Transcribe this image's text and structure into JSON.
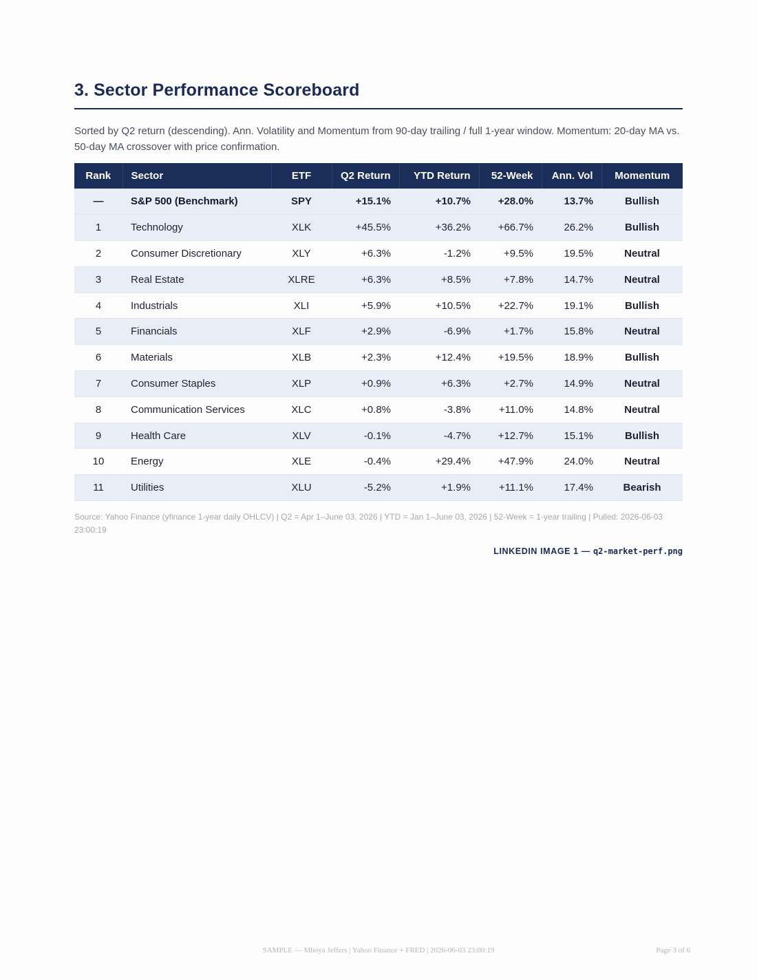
{
  "heading": {
    "title": "3. Sector Performance Scoreboard",
    "description": "Sorted by Q2 return (descending). Ann. Volatility and Momentum from 90-day trailing / full 1-year window. Momentum: 20-day MA vs. 50-day MA crossover with price confirmation."
  },
  "table": {
    "headers": {
      "rank": "Rank",
      "sector": "Sector",
      "etf": "ETF",
      "q2": "Q2 Return",
      "ytd": "YTD Return",
      "week52": "52-Week",
      "vol": "Ann. Vol",
      "momentum": "Momentum"
    },
    "rows": [
      {
        "rank": "—",
        "sector": "S&P 500 (Benchmark)",
        "etf": "SPY",
        "q2": "+15.1%",
        "ytd": "+10.7%",
        "week52": "+28.0%",
        "vol": "13.7%",
        "momentum": "Bullish"
      },
      {
        "rank": "1",
        "sector": "Technology",
        "etf": "XLK",
        "q2": "+45.5%",
        "ytd": "+36.2%",
        "week52": "+66.7%",
        "vol": "26.2%",
        "momentum": "Bullish"
      },
      {
        "rank": "2",
        "sector": "Consumer Discretionary",
        "etf": "XLY",
        "q2": "+6.3%",
        "ytd": "-1.2%",
        "week52": "+9.5%",
        "vol": "19.5%",
        "momentum": "Neutral"
      },
      {
        "rank": "3",
        "sector": "Real Estate",
        "etf": "XLRE",
        "q2": "+6.3%",
        "ytd": "+8.5%",
        "week52": "+7.8%",
        "vol": "14.7%",
        "momentum": "Neutral"
      },
      {
        "rank": "4",
        "sector": "Industrials",
        "etf": "XLI",
        "q2": "+5.9%",
        "ytd": "+10.5%",
        "week52": "+22.7%",
        "vol": "19.1%",
        "momentum": "Bullish"
      },
      {
        "rank": "5",
        "sector": "Financials",
        "etf": "XLF",
        "q2": "+2.9%",
        "ytd": "-6.9%",
        "week52": "+1.7%",
        "vol": "15.8%",
        "momentum": "Neutral"
      },
      {
        "rank": "6",
        "sector": "Materials",
        "etf": "XLB",
        "q2": "+2.3%",
        "ytd": "+12.4%",
        "week52": "+19.5%",
        "vol": "18.9%",
        "momentum": "Bullish"
      },
      {
        "rank": "7",
        "sector": "Consumer Staples",
        "etf": "XLP",
        "q2": "+0.9%",
        "ytd": "+6.3%",
        "week52": "+2.7%",
        "vol": "14.9%",
        "momentum": "Neutral"
      },
      {
        "rank": "8",
        "sector": "Communication Services",
        "etf": "XLC",
        "q2": "+0.8%",
        "ytd": "-3.8%",
        "week52": "+11.0%",
        "vol": "14.8%",
        "momentum": "Neutral"
      },
      {
        "rank": "9",
        "sector": "Health Care",
        "etf": "XLV",
        "q2": "-0.1%",
        "ytd": "-4.7%",
        "week52": "+12.7%",
        "vol": "15.1%",
        "momentum": "Bullish"
      },
      {
        "rank": "10",
        "sector": "Energy",
        "etf": "XLE",
        "q2": "-0.4%",
        "ytd": "+29.4%",
        "week52": "+47.9%",
        "vol": "24.0%",
        "momentum": "Neutral"
      },
      {
        "rank": "11",
        "sector": "Utilities",
        "etf": "XLU",
        "q2": "-5.2%",
        "ytd": "+1.9%",
        "week52": "+11.1%",
        "vol": "17.4%",
        "momentum": "Bearish"
      }
    ]
  },
  "source_note": "Source: Yahoo Finance (yfinance 1-year daily OHLCV) | Q2 = Apr 1–June 03, 2026 | YTD = Jan 1–June 03, 2026 | 52-Week = 1-year trailing | Pulled: 2026-06-03 23:00:19",
  "caption": {
    "label": "LINKEDIN IMAGE 1 — ",
    "file": "q2-market-perf.png"
  },
  "footer": {
    "center": "SAMPLE — Mboya Jeffers | Yahoo Finance + FRED | 2026-06-03 23:00:19",
    "page": "Page 3 of 6"
  },
  "colors": {
    "header_bg": "#1b2d59",
    "title": "#1b2a57",
    "positive": "#1f9d3f",
    "negative": "#cc2233",
    "bullish": "#1c9a2f",
    "neutral": "#5f6370",
    "bearish": "#c4121f",
    "row_alt": "#e9edf6"
  }
}
